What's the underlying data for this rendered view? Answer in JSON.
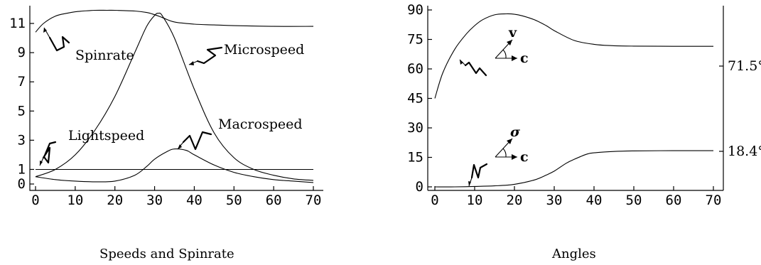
{
  "chart_data": [
    {
      "type": "line",
      "title": "Speeds and Spinrate",
      "xlabel": "",
      "ylabel": "",
      "xlim": [
        0,
        70
      ],
      "ylim": [
        0,
        12
      ],
      "x_ticks": [
        0,
        10,
        20,
        30,
        40,
        50,
        60,
        70
      ],
      "y_ticks": [
        0,
        1,
        3,
        5,
        7,
        9,
        11
      ],
      "series": [
        {
          "name": "Spinrate",
          "x": [
            0,
            2,
            5,
            8,
            10,
            12,
            15,
            18,
            20,
            25,
            28,
            30,
            32,
            35,
            40,
            45,
            50,
            60,
            70
          ],
          "y": [
            10.4,
            11.0,
            11.5,
            11.7,
            11.8,
            11.85,
            11.9,
            11.9,
            11.9,
            11.85,
            11.75,
            11.6,
            11.4,
            11.1,
            10.95,
            10.9,
            10.85,
            10.8,
            10.8
          ]
        },
        {
          "name": "Microspeed",
          "x": [
            0,
            5,
            10,
            15,
            20,
            25,
            28,
            30,
            31,
            32,
            35,
            40,
            45,
            50,
            55,
            60,
            65,
            70
          ],
          "y": [
            0.5,
            1.0,
            2.0,
            3.7,
            6.0,
            9.0,
            10.8,
            11.55,
            11.7,
            11.5,
            10.0,
            6.5,
            3.5,
            1.8,
            1.0,
            0.6,
            0.35,
            0.25
          ]
        },
        {
          "name": "Macrospeed",
          "x": [
            0,
            5,
            10,
            15,
            20,
            25,
            28,
            30,
            33,
            35,
            38,
            40,
            45,
            50,
            55,
            60,
            65,
            70
          ],
          "y": [
            0.5,
            0.3,
            0.2,
            0.15,
            0.2,
            0.6,
            1.2,
            1.7,
            2.2,
            2.4,
            2.3,
            2.0,
            1.3,
            0.8,
            0.5,
            0.3,
            0.2,
            0.1
          ]
        },
        {
          "name": "Lightspeed",
          "x": [
            0,
            70
          ],
          "y": [
            1,
            1
          ]
        }
      ]
    },
    {
      "type": "line",
      "title": "Angles",
      "xlabel": "",
      "ylabel": "",
      "xlim": [
        0,
        70
      ],
      "ylim": [
        0,
        90
      ],
      "x_ticks": [
        0,
        10,
        20,
        30,
        40,
        50,
        60,
        70
      ],
      "y_ticks": [
        0,
        15,
        30,
        45,
        60,
        75,
        90
      ],
      "right_labels": [
        "71.5°",
        "18.4°"
      ],
      "series": [
        {
          "x": [
            0,
            2,
            5,
            8,
            10,
            12,
            15,
            18,
            20,
            22,
            25,
            28,
            30,
            35,
            40,
            45,
            50,
            60,
            70
          ],
          "y": [
            45,
            58,
            70,
            78,
            82,
            85,
            87.5,
            88,
            87.8,
            87,
            85,
            82,
            79.5,
            74.5,
            72.5,
            71.8,
            71.6,
            71.5,
            71.5
          ]
        },
        {
          "x": [
            0,
            5,
            10,
            15,
            20,
            25,
            28,
            30,
            33,
            35,
            38,
            40,
            45,
            50,
            60,
            70
          ],
          "y": [
            0,
            0,
            0.2,
            0.5,
            1.3,
            3.5,
            6.0,
            8.0,
            12.0,
            14.0,
            16.5,
            17.3,
            18.0,
            18.3,
            18.4,
            18.4
          ]
        }
      ]
    }
  ],
  "annotations": {
    "left": {
      "spinrate": "Spinrate",
      "microspeed": "Microspeed",
      "macrospeed": "Macrospeed",
      "lightspeed": "Lightspeed"
    },
    "right": {
      "v_symbol": "v",
      "sigma_symbol": "σ",
      "c_symbol_top": "c",
      "c_symbol_bottom": "c",
      "angle_top": "71.5°",
      "angle_bottom": "18.4°"
    }
  },
  "captions": {
    "left": "Speeds and Spinrate",
    "right": "Angles"
  }
}
